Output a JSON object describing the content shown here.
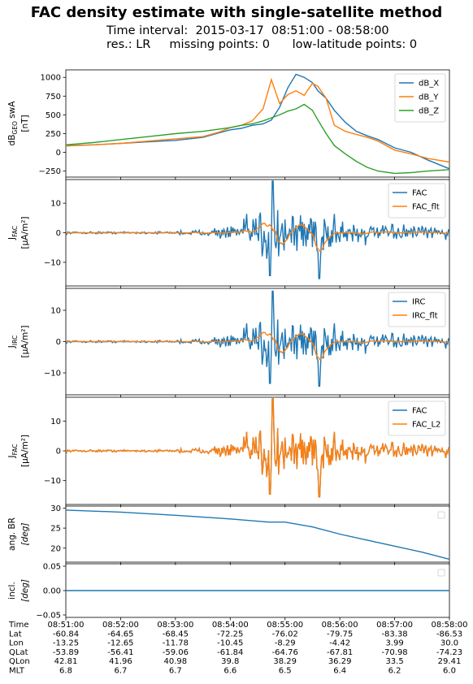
{
  "title": "FAC density estimate with single-satellite method",
  "subtitle_interval": "Time interval:  2015-03-17  08:51:00 - 08:58:00",
  "subtitle_info": "res.: LR     missing points: 0      low-latitude points: 0",
  "colors": {
    "blue": "#1f77b4",
    "orange": "#ff7f0e",
    "green": "#2ca02c"
  },
  "chart_data": [
    {
      "type": "line",
      "ylabel_main": "dB",
      "ylabel_sub": "GEO",
      "ylabel_tail": " swA",
      "ylabel_unit": "[nT]",
      "ylim": [
        -330,
        1100
      ],
      "yticks": [
        -250,
        0,
        250,
        500,
        750,
        1000
      ],
      "legend": "top-right",
      "x_minutes": [
        0,
        0.5,
        1,
        1.5,
        2,
        2.5,
        2.8,
        3.0,
        3.2,
        3.4,
        3.6,
        3.75,
        3.9,
        4.05,
        4.2,
        4.35,
        4.5,
        4.6,
        4.75,
        4.9,
        5.1,
        5.3,
        5.5,
        5.7,
        6.0,
        6.3,
        6.6,
        7.0
      ],
      "series": [
        {
          "name": "dB_X",
          "color": "blue",
          "values": [
            90,
            100,
            120,
            140,
            160,
            200,
            260,
            300,
            320,
            360,
            380,
            430,
            600,
            860,
            1040,
            1000,
            930,
            820,
            720,
            560,
            400,
            280,
            220,
            170,
            60,
            0,
            -100,
            -220
          ]
        },
        {
          "name": "dB_Y",
          "color": "orange",
          "values": [
            85,
            100,
            120,
            150,
            180,
            210,
            270,
            330,
            360,
            420,
            580,
            970,
            650,
            770,
            820,
            760,
            920,
            880,
            720,
            360,
            280,
            240,
            200,
            150,
            30,
            -20,
            -80,
            -130
          ]
        },
        {
          "name": "dB_Z",
          "color": "green",
          "values": [
            100,
            130,
            170,
            210,
            250,
            280,
            310,
            330,
            360,
            380,
            420,
            460,
            500,
            550,
            580,
            640,
            560,
            430,
            250,
            90,
            -20,
            -120,
            -200,
            -250,
            -280,
            -270,
            -250,
            -230
          ]
        }
      ]
    },
    {
      "type": "line",
      "ylabel_main": "J",
      "ylabel_sub": "FAC",
      "ylabel_unit": "[μA/m²]",
      "ylim": [
        -18,
        18
      ],
      "yticks": [
        -10,
        0,
        10
      ],
      "legend": "top-right",
      "series": [
        {
          "name": "FAC",
          "color": "blue"
        },
        {
          "name": "FAC_flt",
          "color": "orange"
        }
      ]
    },
    {
      "type": "line",
      "ylabel_main": "J",
      "ylabel_sub": "IRC",
      "ylabel_unit": "[μA/m²]",
      "ylim": [
        -17,
        17
      ],
      "yticks": [
        -10,
        0,
        10
      ],
      "legend": "top-right",
      "series": [
        {
          "name": "IRC",
          "color": "blue"
        },
        {
          "name": "IRC_flt",
          "color": "orange"
        }
      ]
    },
    {
      "type": "line",
      "ylabel_main": "J",
      "ylabel_sub": "FAC",
      "ylabel_unit": "[μA/m²]",
      "ylim": [
        -18,
        18
      ],
      "yticks": [
        -10,
        0,
        10
      ],
      "legend": "top-right",
      "series": [
        {
          "name": "FAC",
          "color": "blue"
        },
        {
          "name": "FAC_L2",
          "color": "orange"
        }
      ]
    },
    {
      "type": "line",
      "ylabel_main": "ang. BR",
      "ylabel_unit": "[deg]",
      "ylim": [
        16.5,
        30.5
      ],
      "yticks": [
        20,
        25,
        30
      ],
      "x_minutes": [
        0,
        1,
        2,
        3,
        3.7,
        4.0,
        4.5,
        5.0,
        5.5,
        6.0,
        6.5,
        7.0
      ],
      "series": [
        {
          "name": "",
          "color": "blue",
          "values": [
            29.5,
            29.0,
            28.2,
            27.3,
            26.5,
            26.5,
            25.3,
            23.5,
            22.0,
            20.5,
            19.0,
            17.2
          ]
        }
      ]
    },
    {
      "type": "line",
      "ylabel_main": "incl.",
      "ylabel_unit": "[deg]",
      "ylim": [
        -0.055,
        0.055
      ],
      "yticks": [
        -0.05,
        0.0,
        0.05
      ],
      "ytick_labels": [
        "−0.05",
        "0.00",
        "0.05"
      ],
      "series": [
        {
          "name": "",
          "color": "blue",
          "values": [
            0,
            0
          ]
        }
      ]
    }
  ],
  "x_axis": {
    "row_labels": [
      "Time",
      "Lat",
      "Lon",
      "QLat",
      "QLon",
      "MLT"
    ],
    "ticks": [
      [
        "08:51:00",
        "-60.84",
        "-13.25",
        "-53.89",
        "42.81",
        "6.8"
      ],
      [
        "08:52:00",
        "-64.65",
        "-12.65",
        "-56.41",
        "41.96",
        "6.7"
      ],
      [
        "08:53:00",
        "-68.45",
        "-11.78",
        "-59.06",
        "40.98",
        "6.7"
      ],
      [
        "08:54:00",
        "-72.25",
        "-10.45",
        "-61.84",
        "39.8",
        "6.6"
      ],
      [
        "08:55:00",
        "-76.02",
        "-8.29",
        "-64.76",
        "38.29",
        "6.5"
      ],
      [
        "08:56:00",
        "-79.75",
        "-4.42",
        "-67.81",
        "36.29",
        "6.4"
      ],
      [
        "08:57:00",
        "-83.38",
        "3.99",
        "-70.98",
        "33.5",
        "6.2"
      ],
      [
        "08:58:00",
        "-86.53",
        "30.0",
        "-74.23",
        "29.41",
        "6.0"
      ]
    ]
  }
}
